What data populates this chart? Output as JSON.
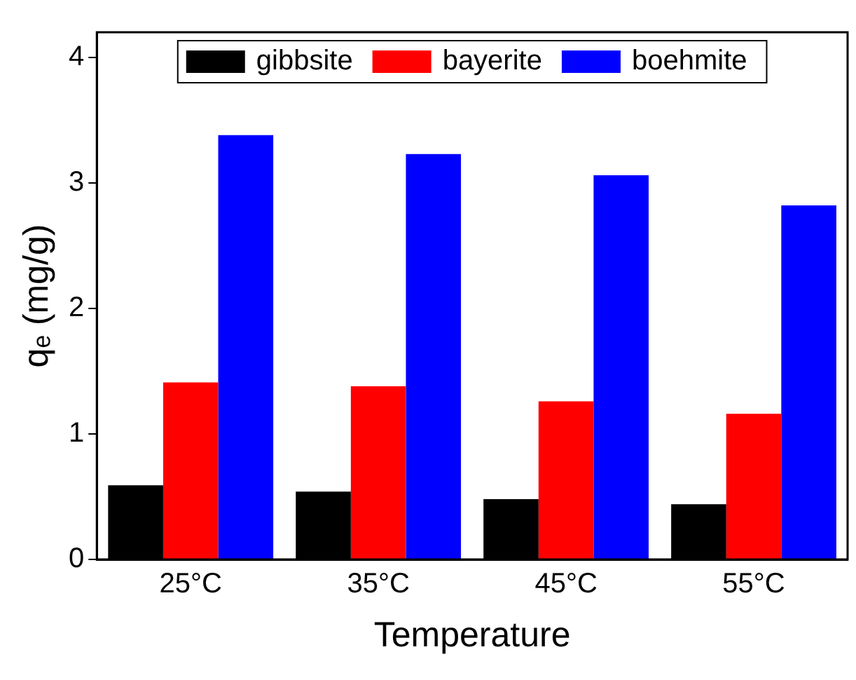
{
  "chart_data": {
    "type": "bar",
    "xlabel": "Temperature",
    "ylabel": "qₑ (mg/g)",
    "categories": [
      "25°C",
      "35°C",
      "45°C",
      "55°C"
    ],
    "series": [
      {
        "name": "gibbsite",
        "color": "#000000",
        "values": [
          0.59,
          0.54,
          0.48,
          0.44
        ]
      },
      {
        "name": "bayerite",
        "color": "#ff0000",
        "values": [
          1.41,
          1.38,
          1.26,
          1.16
        ]
      },
      {
        "name": "boehmite",
        "color": "#0000ff",
        "values": [
          3.38,
          3.23,
          3.06,
          2.82
        ]
      }
    ],
    "ylim": [
      0,
      4.2
    ],
    "yticks": [
      0,
      1,
      2,
      3,
      4
    ],
    "grid": false,
    "legend": "top"
  }
}
